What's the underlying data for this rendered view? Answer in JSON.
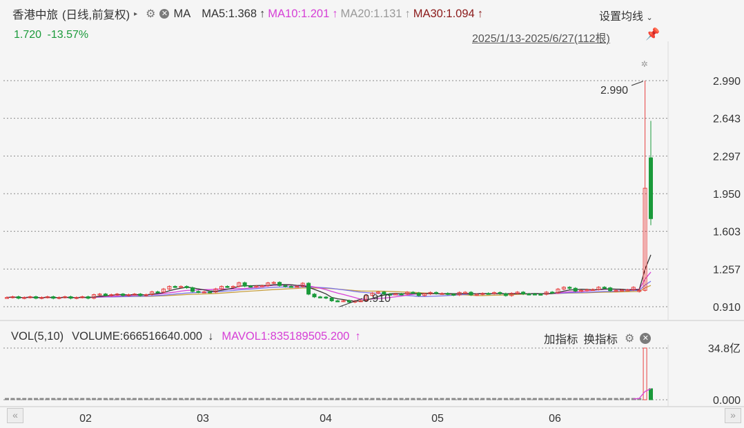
{
  "header": {
    "stock_name": "香港中旅",
    "period": "(日线,前复权)",
    "expand_icon": "triangle-right-icon",
    "ma_label": "MA",
    "ma5": "MA5:1.368",
    "ma10": "MA10:1.201",
    "ma20": "MA20:1.131",
    "ma30": "MA30:1.094",
    "arrow_up": "↑",
    "ma_settings": "设置均线",
    "price": "1.720",
    "change": "-13.57%",
    "range": "2025/1/13-2025/6/27(112根)"
  },
  "volume_header": {
    "label": "VOL(5,10)",
    "volume": "VOLUME:666516640.000",
    "volume_arrow": "↓",
    "mavol": "MAVOL1:835189505.200",
    "mavol_arrow": "↑",
    "add_indicator": "加指标",
    "switch_indicator": "换指标"
  },
  "nav": {
    "prev": "«",
    "next": "»"
  },
  "colors": {
    "up": "#e84040",
    "down": "#1a9a3a",
    "ma5": "#333333",
    "ma10": "#d63fd6",
    "ma20": "#7b72e9",
    "ma30": "#c8a040",
    "ma30_label": "#8b1a1a",
    "ma20_label": "#999999",
    "change": "#1a9a3a"
  },
  "chart_data": {
    "type": "candlestick",
    "price_axis": {
      "ticks": [
        "2.990",
        "2.643",
        "2.297",
        "1.950",
        "1.603",
        "1.257",
        "0.910"
      ],
      "range": [
        0.91,
        2.99
      ]
    },
    "volume_axis": {
      "ticks": [
        "34.8亿",
        "0.000"
      ]
    },
    "x_ticks": [
      "02",
      "03",
      "04",
      "05",
      "06"
    ],
    "annotations": {
      "high": "2.990",
      "low": "0.910"
    },
    "x_range": [
      "2025/1/13",
      "2025/6/27"
    ],
    "bars_count": 112,
    "final_candles": [
      {
        "open": 1.05,
        "high": 1.08,
        "low": 1.04,
        "close": 1.06
      },
      {
        "open": 1.06,
        "high": 2.99,
        "low": 1.05,
        "close": 2.0
      },
      {
        "open": 2.28,
        "high": 2.62,
        "low": 1.66,
        "close": 1.72
      }
    ],
    "ma_last": {
      "MA5": 1.368,
      "MA10": 1.201,
      "MA20": 1.131,
      "MA30": 1.094
    }
  }
}
